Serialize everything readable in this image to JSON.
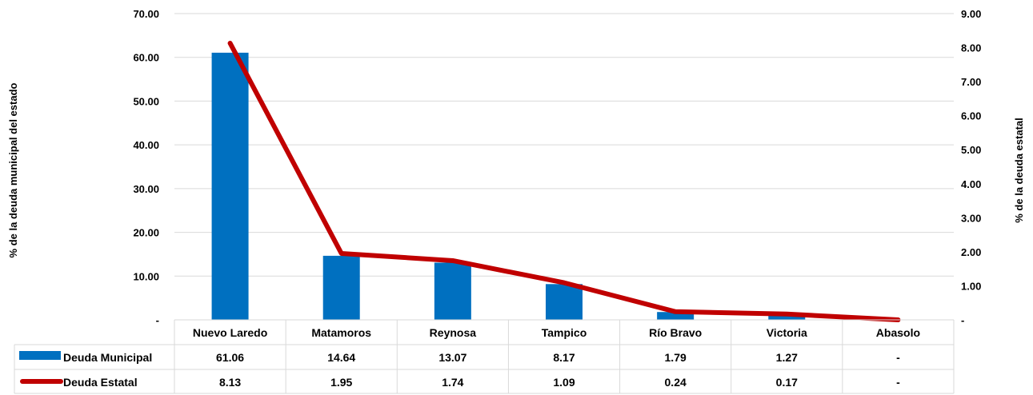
{
  "chart_data": {
    "type": "bar",
    "categories": [
      "Nuevo Laredo",
      "Matamoros",
      "Reynosa",
      "Tampico",
      "Río Bravo",
      "Victoria",
      "Abasolo"
    ],
    "series": [
      {
        "name": "Deuda Municipal",
        "type": "bar",
        "axis": "left",
        "color": "#0070C0",
        "values": [
          61.06,
          14.64,
          13.07,
          8.17,
          1.79,
          1.27,
          0
        ],
        "labels": [
          "61.06",
          "14.64",
          "13.07",
          "8.17",
          "1.79",
          "1.27",
          "-"
        ]
      },
      {
        "name": "Deuda Estatal",
        "type": "line",
        "axis": "right",
        "color": "#C00000",
        "values": [
          8.13,
          1.95,
          1.74,
          1.09,
          0.24,
          0.17,
          0
        ],
        "labels": [
          "8.13",
          "1.95",
          "1.74",
          "1.09",
          "0.24",
          "0.17",
          "-"
        ]
      }
    ],
    "ylabel": "% de la deuda municipal del estado",
    "y2label": "% de la deuda estatal",
    "ylim": [
      0,
      70
    ],
    "y2lim": [
      0,
      9
    ],
    "yticks": [
      "-",
      "10.00",
      "20.00",
      "30.00",
      "40.00",
      "50.00",
      "60.00",
      "70.00"
    ],
    "y2ticks": [
      "-",
      "1.00",
      "2.00",
      "3.00",
      "4.00",
      "5.00",
      "6.00",
      "7.00",
      "8.00",
      "9.00"
    ],
    "grid": true,
    "legend": "data-table-bottom"
  }
}
